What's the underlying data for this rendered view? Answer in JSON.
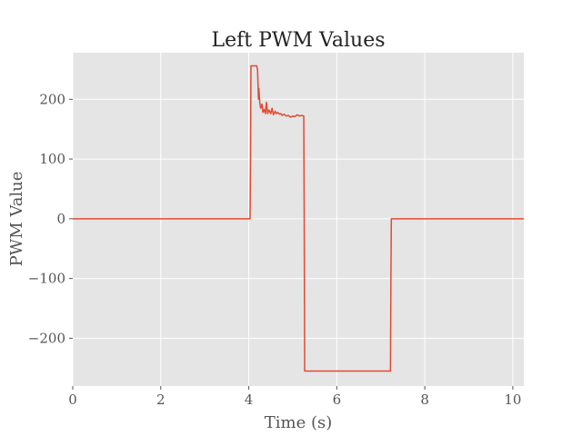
{
  "chart_data": {
    "type": "line",
    "title": "Left PWM Values",
    "xlabel": "Time (s)",
    "ylabel": "PWM Value",
    "xlim": [
      0,
      10.25
    ],
    "ylim": [
      -280,
      278
    ],
    "xticks": [
      0,
      2,
      4,
      6,
      8,
      10
    ],
    "xtick_labels": [
      "0",
      "2",
      "4",
      "6",
      "8",
      "10"
    ],
    "yticks": [
      -200,
      -100,
      0,
      100,
      200
    ],
    "ytick_labels": [
      "−200",
      "−100",
      "0",
      "100",
      "200"
    ],
    "grid": true,
    "colors": {
      "plot_background": "#e5e5e5",
      "grid": "#ffffff",
      "series": "#e24a33",
      "tick_text": "#555555",
      "title_text": "#222222"
    },
    "series": [
      {
        "x": [
          0,
          4.03,
          4.04,
          4.05,
          4.1,
          4.18,
          4.2,
          4.22,
          4.23,
          4.25,
          4.27,
          4.3,
          4.32,
          4.35,
          4.38,
          4.4,
          4.43,
          4.46,
          4.5,
          4.53,
          4.56,
          4.6,
          4.63,
          4.66,
          4.7,
          4.73,
          4.76,
          4.8,
          4.85,
          4.9,
          4.95,
          5.0,
          5.05,
          5.1,
          5.15,
          5.2,
          5.25,
          5.26,
          5.27,
          7.22,
          7.23,
          7.24,
          10.25
        ],
        "y": [
          0,
          0,
          100,
          256,
          256,
          256,
          250,
          200,
          218,
          195,
          185,
          192,
          178,
          183,
          176,
          195,
          176,
          182,
          176,
          185,
          174,
          180,
          176,
          178,
          175,
          176,
          173,
          175,
          172,
          173,
          170,
          172,
          171,
          174,
          172,
          173,
          172,
          0,
          -255,
          -255,
          -100,
          0,
          0
        ]
      }
    ]
  }
}
